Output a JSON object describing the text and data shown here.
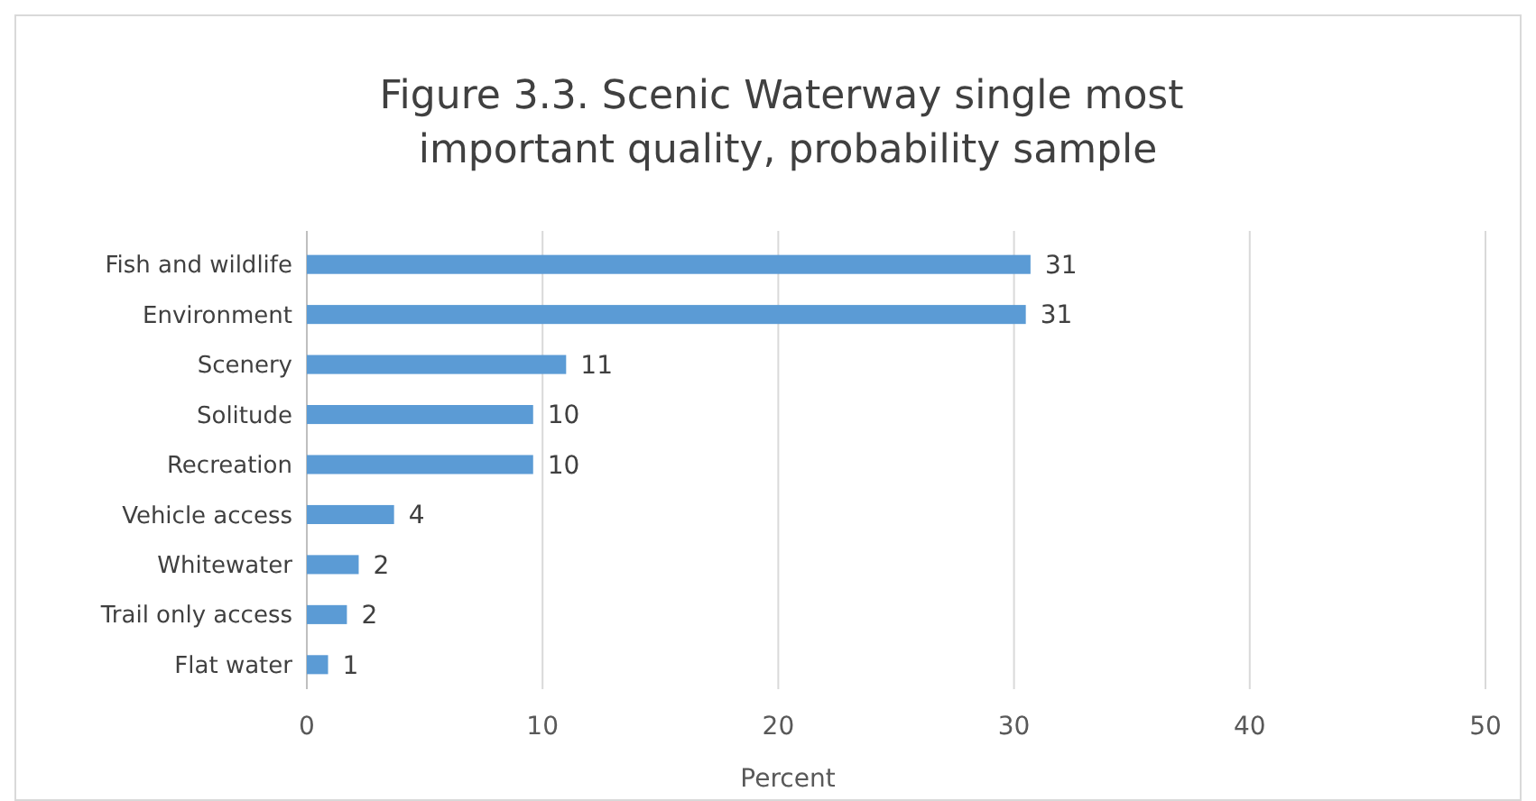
{
  "chart_data": {
    "type": "bar",
    "orientation": "horizontal",
    "title": "Figure 3.3.  Scenic Waterway single most important quality,  probability sample",
    "xlabel": "Percent",
    "categories": [
      "Fish and wildlife",
      "Environment",
      "Scenery",
      "Solitude",
      "Recreation",
      "Vehicle access",
      "Whitewater",
      "Trail only access",
      "Flat water"
    ],
    "values": [
      30.7,
      30.5,
      11.0,
      9.6,
      9.6,
      3.7,
      2.2,
      1.7,
      0.9
    ],
    "value_labels": [
      "31",
      "31",
      "11",
      "10",
      "10",
      "4",
      "2",
      "2",
      "1"
    ],
    "color": "#5b9bd5",
    "xlim": [
      0,
      50
    ],
    "xticks": [
      0,
      10,
      20,
      30,
      40,
      50
    ],
    "grid": "x"
  }
}
